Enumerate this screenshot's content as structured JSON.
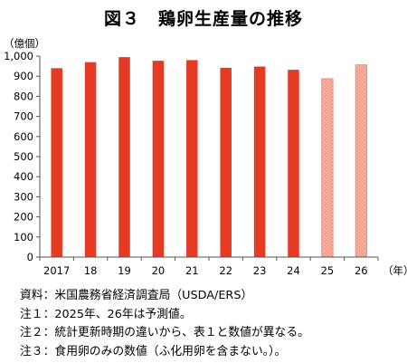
{
  "title": "図３　鶏卵生産量の推移",
  "y_unit": "（億個）",
  "x_unit": "（年）",
  "chart_data": {
    "type": "bar",
    "categories": [
      "2017",
      "18",
      "19",
      "20",
      "21",
      "22",
      "23",
      "24",
      "25",
      "26"
    ],
    "values": [
      940,
      970,
      995,
      977,
      980,
      942,
      948,
      932,
      888,
      957
    ],
    "forecast": [
      false,
      false,
      false,
      false,
      false,
      false,
      false,
      false,
      true,
      true
    ],
    "ylim": [
      0,
      1000
    ],
    "yticks": [
      0,
      100,
      200,
      300,
      400,
      500,
      600,
      700,
      800,
      900,
      1000
    ],
    "ytick_labels": [
      "0",
      "100",
      "200",
      "300",
      "400",
      "500",
      "600",
      "700",
      "800",
      "900",
      "1,000"
    ],
    "grid": false,
    "colors": {
      "actual": "#e53b25",
      "forecast": "#f7b09f",
      "forecast_dot": "#e8735c",
      "axis": "#555555"
    }
  },
  "notes": [
    "資料：米国農務省経済調査局（USDA/ERS）",
    "注１：2025年、26年は予測値。",
    "注２：統計更新時期の違いから、表１と数値が異なる。",
    "注３：食用卵のみの数値（ふ化用卵を含まない。）。"
  ]
}
